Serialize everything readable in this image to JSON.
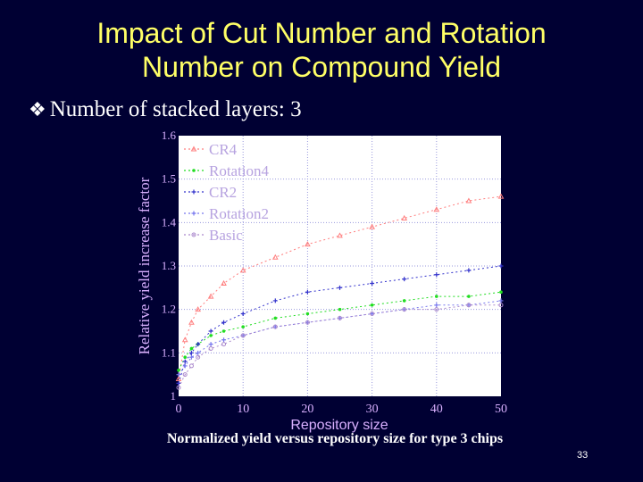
{
  "slide": {
    "title_line1": "Impact of Cut Number and Rotation",
    "title_line2": "Number on Compound Yield",
    "bullet_symbol": "❖",
    "bullet_text": "Number of stacked layers: 3",
    "caption": "Normalized yield versus repository size for type 3 chips",
    "page_number": "33"
  },
  "chart_data": {
    "type": "line",
    "xlabel": "Repository size",
    "ylabel": "Relative yield increase factor",
    "xlim": [
      0,
      50
    ],
    "ylim": [
      1,
      1.6
    ],
    "xticks": [
      "0",
      "10",
      "20",
      "30",
      "40",
      "50"
    ],
    "yticks": [
      "1",
      "1.1",
      "1.2",
      "1.3",
      "1.4",
      "1.5",
      "1.6"
    ],
    "grid": true,
    "legend_position": "top-left",
    "x": [
      0,
      1,
      2,
      3,
      5,
      7,
      10,
      15,
      20,
      25,
      30,
      35,
      40,
      45,
      50
    ],
    "series": [
      {
        "name": "CR4",
        "color": "#ff7f7f",
        "marker": "triangle",
        "values": [
          1.04,
          1.13,
          1.17,
          1.2,
          1.23,
          1.26,
          1.29,
          1.32,
          1.35,
          1.37,
          1.39,
          1.41,
          1.43,
          1.45,
          1.46
        ]
      },
      {
        "name": "Rotation4",
        "color": "#22dd22",
        "marker": "dot",
        "values": [
          1.06,
          1.09,
          1.11,
          1.12,
          1.14,
          1.15,
          1.16,
          1.18,
          1.19,
          1.2,
          1.21,
          1.22,
          1.23,
          1.23,
          1.24
        ]
      },
      {
        "name": "CR2",
        "color": "#3333cc",
        "marker": "plus",
        "values": [
          1.03,
          1.08,
          1.1,
          1.12,
          1.15,
          1.17,
          1.19,
          1.22,
          1.24,
          1.25,
          1.26,
          1.27,
          1.28,
          1.29,
          1.3
        ]
      },
      {
        "name": "Rotation2",
        "color": "#7777ee",
        "marker": "plus",
        "values": [
          1.05,
          1.07,
          1.09,
          1.1,
          1.12,
          1.13,
          1.14,
          1.16,
          1.17,
          1.18,
          1.19,
          1.2,
          1.21,
          1.21,
          1.22
        ]
      },
      {
        "name": "Basic",
        "color": "#aa88cc",
        "marker": "circle",
        "values": [
          1.02,
          1.05,
          1.07,
          1.09,
          1.11,
          1.12,
          1.14,
          1.16,
          1.17,
          1.18,
          1.19,
          1.2,
          1.2,
          1.21,
          1.21
        ]
      }
    ]
  }
}
